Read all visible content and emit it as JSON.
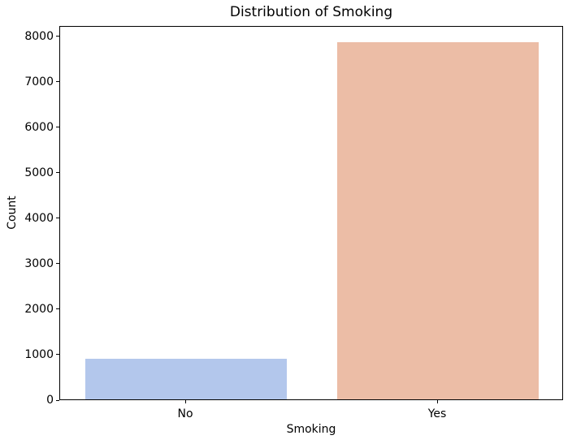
{
  "figure": {
    "background": "#ffffff",
    "text_color": "#000000",
    "spine_color": "#000000"
  },
  "chart_data": {
    "type": "bar",
    "title": "Distribution of Smoking",
    "xlabel": "Smoking",
    "ylabel": "Count",
    "categories": [
      "No",
      "Yes"
    ],
    "values": [
      900,
      7850
    ],
    "bar_colors": [
      "#b3c7ec",
      "#ecbda6"
    ],
    "yticks": [
      0,
      1000,
      2000,
      3000,
      4000,
      5000,
      6000,
      7000,
      8000
    ],
    "ylim": [
      0,
      8232
    ],
    "bar_width_fraction": 0.8,
    "grid": false
  }
}
